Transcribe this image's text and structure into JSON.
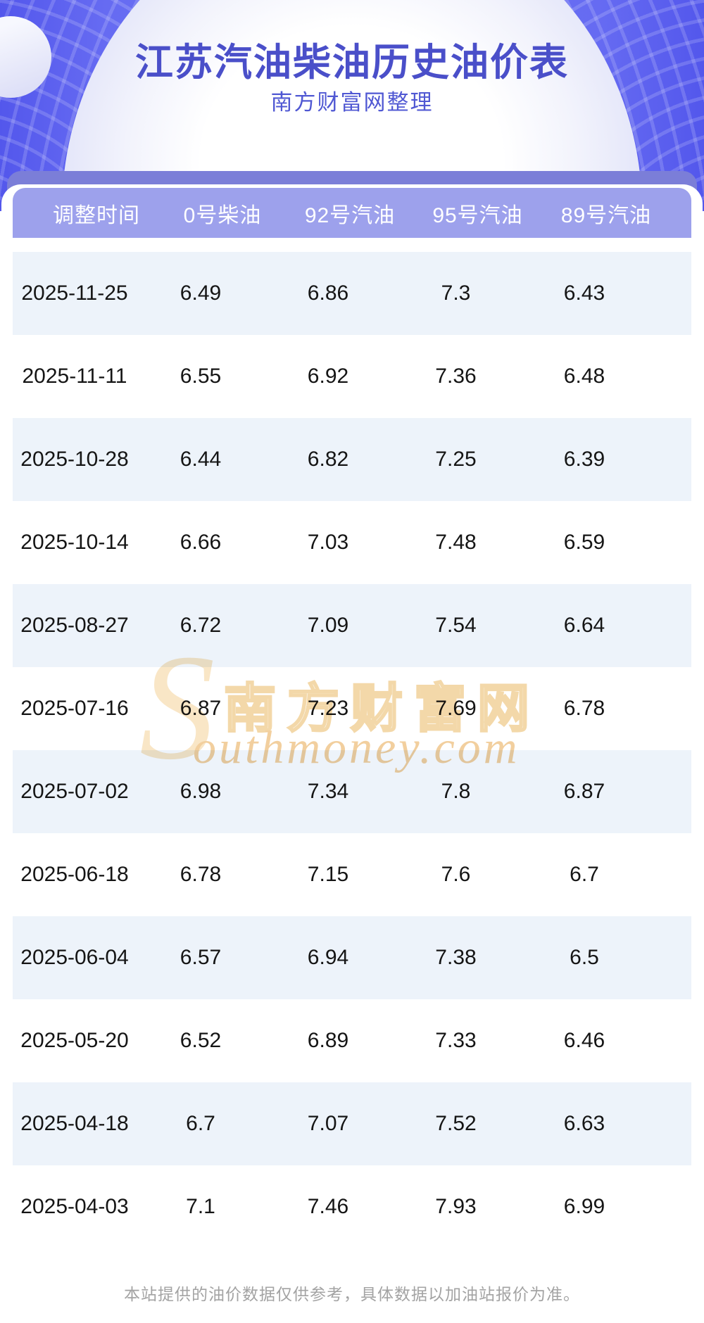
{
  "banner": {
    "title": "江苏汽油柴油历史油价表",
    "subtitle": "南方财富网整理"
  },
  "watermark": {
    "initial": "S",
    "cn": "南方财富网",
    "en": "outhmoney.com"
  },
  "table": {
    "columns": [
      "调整时间",
      "0号柴油",
      "92号汽油",
      "95号汽油",
      "89号汽油"
    ],
    "rows": [
      [
        "2025-11-25",
        "6.49",
        "6.86",
        "7.3",
        "6.43"
      ],
      [
        "2025-11-11",
        "6.55",
        "6.92",
        "7.36",
        "6.48"
      ],
      [
        "2025-10-28",
        "6.44",
        "6.82",
        "7.25",
        "6.39"
      ],
      [
        "2025-10-14",
        "6.66",
        "7.03",
        "7.48",
        "6.59"
      ],
      [
        "2025-08-27",
        "6.72",
        "7.09",
        "7.54",
        "6.64"
      ],
      [
        "2025-07-16",
        "6.87",
        "7.23",
        "7.69",
        "6.78"
      ],
      [
        "2025-07-02",
        "6.98",
        "7.34",
        "7.8",
        "6.87"
      ],
      [
        "2025-06-18",
        "6.78",
        "7.15",
        "7.6",
        "6.7"
      ],
      [
        "2025-06-04",
        "6.57",
        "6.94",
        "7.38",
        "6.5"
      ],
      [
        "2025-05-20",
        "6.52",
        "6.89",
        "7.33",
        "6.46"
      ],
      [
        "2025-04-18",
        "6.7",
        "7.07",
        "7.52",
        "6.63"
      ],
      [
        "2025-04-03",
        "7.1",
        "7.46",
        "7.93",
        "6.99"
      ]
    ]
  },
  "footer": {
    "disclaimer": "本站提供的油价数据仅供参考，具体数据以加油站报价为准。"
  },
  "colors": {
    "banner_blue": "#6d72f3",
    "band_purple": "#7b7ed8",
    "header_periwinkle": "#9da1ec",
    "row_light_blue": "#edf3fa",
    "title_indigo": "#4a4fc9",
    "watermark_tan": "#f3d8a9"
  }
}
